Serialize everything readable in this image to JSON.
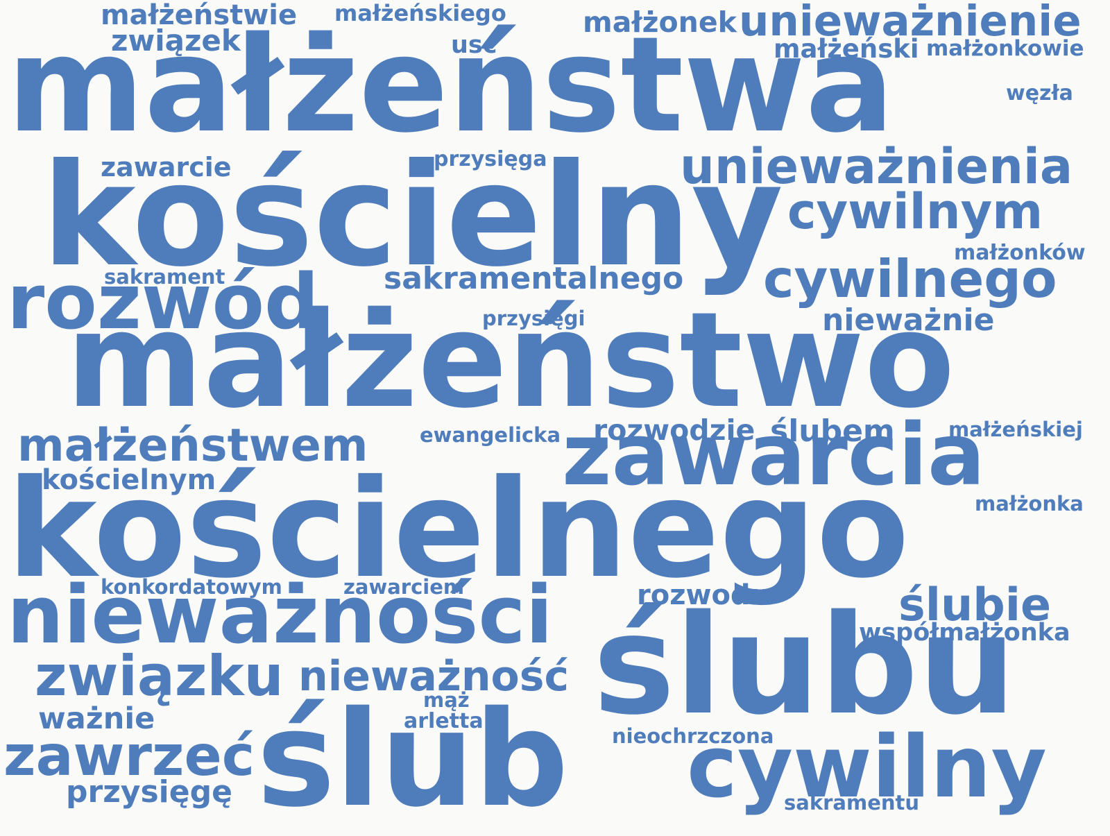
{
  "colors": {
    "background": "#fafaf8",
    "word": "#4f7cba"
  },
  "words": [
    "małżeństwa",
    "kościelny",
    "małżeństwo",
    "kościelnego",
    "ślubu",
    "ślub",
    "nieważności",
    "zawarcia",
    "rozwód",
    "cywilny",
    "unieważnienie",
    "unieważnienia",
    "cywilnym",
    "cywilnego",
    "małżeństwem",
    "związku",
    "zawrzeć",
    "nieważność",
    "ślubie",
    "małżeństwie",
    "małżeńskiego",
    "związek",
    "małżonek",
    "usc",
    "małżeński",
    "małżonkowie",
    "węzła",
    "zawarcie",
    "przysięga",
    "sakrament",
    "sakramentalnego",
    "małżonków",
    "przysięgi",
    "nieważnie",
    "ewangelicka",
    "rozwodzie",
    "ślubem",
    "małżeńskiej",
    "kościelnym",
    "małżonka",
    "konkordatowym",
    "zawarciem",
    "rozwodu",
    "współmałżonka",
    "mąż",
    "ważnie",
    "arletta",
    "nieochrzczona",
    "przysięgę",
    "sakramentu"
  ]
}
